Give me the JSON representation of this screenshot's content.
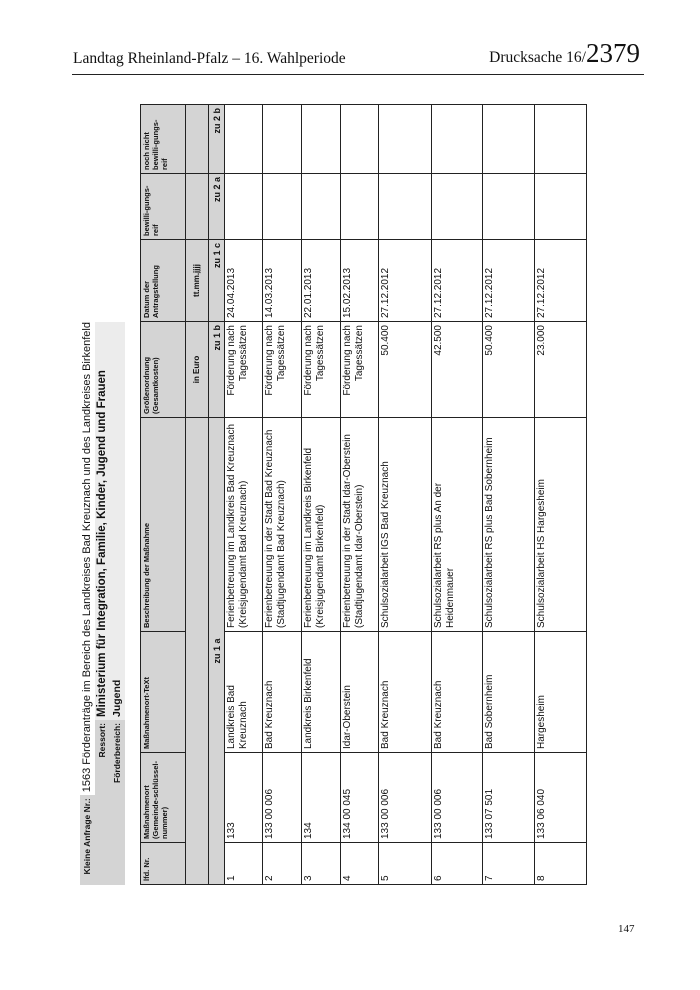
{
  "page_header": {
    "left": "Landtag Rheinland-Pfalz – 16. Wahlperiode",
    "right_prefix": "Drucksache 16/",
    "right_number": "2379"
  },
  "page_number": "147",
  "info": {
    "anfrage_label": "Kleine Anfrage Nr.:",
    "anfrage_value": "1563 Förderanträge im Bereich des Landkreises Bad Kreuznach und des Landkreises Birkenfeld",
    "ressort_label": "Ressort:",
    "ressort_value": "Ministerium für Integration, Familie, Kinder, Jugend und Frauen",
    "bereich_label": "Förderbereich:",
    "bereich_value": "Jugend"
  },
  "table": {
    "headers": [
      "lfd. Nr.",
      "Maßnahmenort (Gemeinde-schlüssel-nummer)",
      "Maßnahmenort-TeXt",
      "Beschreibung der Maßnahme",
      "Größenordnung (Gesamtkosten)",
      "Datum der Antragstellung",
      "bewilli-gungs-reif",
      "noch nicht bewilli-gungs-reif"
    ],
    "units": {
      "groesse": "in Euro",
      "datum": "tt.mm.jjjj"
    },
    "refs": [
      "zu 1 a",
      "zu 1 b",
      "zu 1 c",
      "zu 2 a",
      "zu 2 b"
    ],
    "rows": [
      {
        "nr": "1",
        "ort": "133",
        "ort_text": "Landkreis Bad Kreuznach",
        "beschreibung": "Ferienbetreuung im Landkreis Bad Kreuznach (Kreisjugendamt Bad Kreuznach)",
        "groesse": "Förderung nach Tagessätzen",
        "datum": "24.04.2013",
        "bewilligungsreif": "",
        "nicht_bewilligungsreif": ""
      },
      {
        "nr": "2",
        "ort": "133 00 006",
        "ort_text": "Bad Kreuznach",
        "beschreibung": "Ferienbetreuung in der Stadt Bad Kreuznach (Stadtjugendamt Bad Kreuznach)",
        "groesse": "Förderung nach Tagessätzen",
        "datum": "14.03.2013",
        "bewilligungsreif": "",
        "nicht_bewilligungsreif": ""
      },
      {
        "nr": "3",
        "ort": "134",
        "ort_text": "Landkreis Birkenfeld",
        "beschreibung": "Ferienbetreuung im Landkreis Birkenfeld (Kreisjugendamt Birkenfeld)",
        "groesse": "Förderung nach Tagessätzen",
        "datum": "22.01.2013",
        "bewilligungsreif": "",
        "nicht_bewilligungsreif": ""
      },
      {
        "nr": "4",
        "ort": "134 00 045",
        "ort_text": "Idar-Oberstein",
        "beschreibung": "Ferienbetreuung in der Stadt Idar-Oberstein (Stadtjugendamt Idar-Oberstein)",
        "groesse": "Förderung nach Tagessätzen",
        "datum": "15.02.2013",
        "bewilligungsreif": "",
        "nicht_bewilligungsreif": ""
      },
      {
        "nr": "5",
        "ort": "133 00 006",
        "ort_text": "Bad Kreuznach",
        "beschreibung": "Schulsozialarbeit IGS Bad Kreuznach",
        "groesse": "50.400",
        "datum": "27.12.2012",
        "bewilligungsreif": "",
        "nicht_bewilligungsreif": ""
      },
      {
        "nr": "6",
        "ort": "133 00 006",
        "ort_text": "Bad Kreuznach",
        "beschreibung": "Schulsozialarbeit RS plus An der Heidenmauer",
        "groesse": "42.500",
        "datum": "27.12.2012",
        "bewilligungsreif": "",
        "nicht_bewilligungsreif": ""
      },
      {
        "nr": "7",
        "ort": "133 07 501",
        "ort_text": "Bad Sobernheim",
        "beschreibung": "Schulsozialarbeit RS plus Bad Sobernheim",
        "groesse": "50.400",
        "datum": "27.12.2012",
        "bewilligungsreif": "",
        "nicht_bewilligungsreif": ""
      },
      {
        "nr": "8",
        "ort": "133 06 040",
        "ort_text": "Hargesheim",
        "beschreibung": "Schulsozialarbeit HS Hargesheim",
        "groesse": "23.000",
        "datum": "27.12.2012",
        "bewilligungsreif": "",
        "nicht_bewilligungsreif": ""
      }
    ]
  }
}
